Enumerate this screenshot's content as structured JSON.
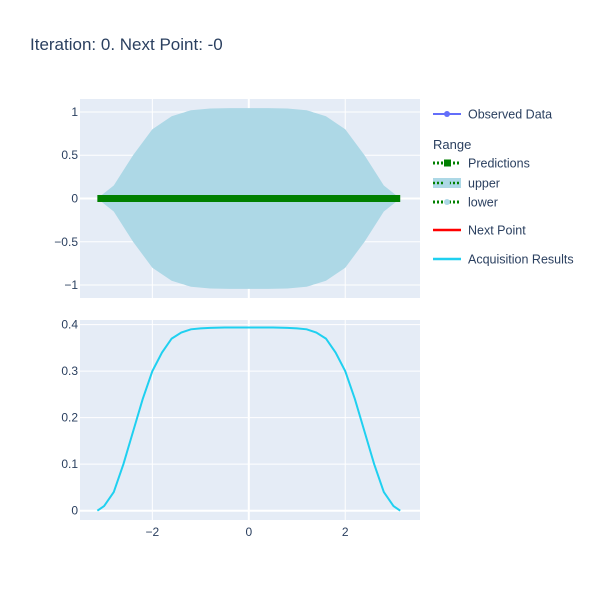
{
  "title": "Iteration: 0. Next Point: -0",
  "colors": {
    "plot_bg": "#e5ecf6",
    "grid": "#ffffff",
    "text": "#2a3f5f",
    "band": "#add8e6",
    "predictions": "#008000",
    "observed": "#636efa",
    "next_point": "#ff0000",
    "acquisition": "#1fd0f0"
  },
  "legend": {
    "position": "right",
    "group_title": "Range",
    "items": [
      {
        "key": "observed",
        "label": "Observed Data",
        "style": "line-marker"
      },
      {
        "key": "predictions",
        "label": "Predictions",
        "style": "dotted-square"
      },
      {
        "key": "upper",
        "label": "upper",
        "style": "fill"
      },
      {
        "key": "lower",
        "label": "lower",
        "style": "dotted-marker"
      },
      {
        "key": "next_point",
        "label": "Next Point",
        "style": "line"
      },
      {
        "key": "acquisition",
        "label": "Acquisition Results",
        "style": "line"
      }
    ]
  },
  "chart_data": [
    {
      "type": "line",
      "panel": "top",
      "xlim": [
        -3.5,
        3.55
      ],
      "ylim": [
        -1.15,
        1.15
      ],
      "xticks": [
        -2,
        0,
        2
      ],
      "yticks": [
        -1,
        -0.5,
        0,
        0.5,
        1
      ],
      "ytick_labels": [
        "−1",
        "−0.5",
        "0",
        "0.5",
        "1"
      ],
      "show_x_tick_labels": false,
      "grid": true,
      "band": {
        "x": [
          -3.14,
          -2.8,
          -2.4,
          -2.0,
          -1.6,
          -1.2,
          -0.8,
          -0.4,
          0,
          0.4,
          0.8,
          1.2,
          1.6,
          2.0,
          2.4,
          2.8,
          3.14
        ],
        "upper": [
          0.0,
          0.15,
          0.5,
          0.8,
          0.95,
          1.02,
          1.04,
          1.045,
          1.045,
          1.045,
          1.04,
          1.02,
          0.95,
          0.8,
          0.5,
          0.15,
          0.0
        ],
        "lower": [
          0.0,
          -0.15,
          -0.5,
          -0.8,
          -0.95,
          -1.02,
          -1.04,
          -1.045,
          -1.045,
          -1.045,
          -1.04,
          -1.02,
          -0.95,
          -0.8,
          -0.5,
          -0.15,
          0.0
        ]
      },
      "series": [
        {
          "key": "predictions",
          "x": [
            -3.14,
            3.14
          ],
          "y": [
            0,
            0
          ]
        }
      ]
    },
    {
      "type": "line",
      "panel": "bottom",
      "xlim": [
        -3.5,
        3.55
      ],
      "ylim": [
        -0.02,
        0.41
      ],
      "xticks": [
        -2,
        0,
        2
      ],
      "xtick_labels": [
        "−2",
        "0",
        "2"
      ],
      "yticks": [
        0,
        0.1,
        0.2,
        0.3,
        0.4
      ],
      "ytick_labels": [
        "0",
        "0.1",
        "0.2",
        "0.3",
        "0.4"
      ],
      "grid": true,
      "series": [
        {
          "key": "acquisition",
          "x": [
            -3.14,
            -3.0,
            -2.8,
            -2.6,
            -2.4,
            -2.2,
            -2.0,
            -1.8,
            -1.6,
            -1.4,
            -1.2,
            -1.0,
            -0.8,
            -0.5,
            0,
            0.5,
            0.8,
            1.0,
            1.2,
            1.4,
            1.6,
            1.8,
            2.0,
            2.2,
            2.4,
            2.6,
            2.8,
            3.0,
            3.14
          ],
          "y": [
            0.0,
            0.01,
            0.04,
            0.1,
            0.17,
            0.24,
            0.3,
            0.34,
            0.37,
            0.383,
            0.39,
            0.392,
            0.393,
            0.394,
            0.394,
            0.394,
            0.393,
            0.392,
            0.39,
            0.383,
            0.37,
            0.34,
            0.3,
            0.24,
            0.17,
            0.1,
            0.04,
            0.01,
            0.0
          ]
        }
      ]
    }
  ]
}
